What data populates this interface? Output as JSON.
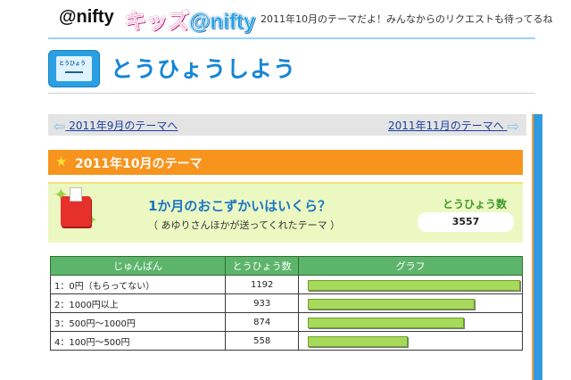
{
  "header": {
    "logo_main": "@nifty",
    "logo_kids_prefix": "キッズ",
    "logo_kids_suffix": "@nifty",
    "tagline": "2011年10月のテーマだよ！みんなからのリクエストも待ってるね"
  },
  "page": {
    "title": "とうひょうしよう",
    "icon_label": "とうひょう"
  },
  "nav": {
    "prev_label": "2011年9月のテーマへ",
    "next_label": "2011年11月のテーマへ"
  },
  "theme": {
    "label": "2011年10月のテーマ"
  },
  "question": {
    "title": "1か月のおこずかいはいくら？",
    "subtitle": "（ あゆりさんほかが送ってくれたテーマ ）",
    "votes_label": "とうひょう数",
    "votes_total": "3557"
  },
  "results": {
    "headers": [
      "じゅんばん",
      "とうひょう数",
      "グラフ"
    ],
    "rows": [
      {
        "label": "1：0円（もらってない）",
        "votes": "1192",
        "fraction": 1.0
      },
      {
        "label": "2：1000円以上",
        "votes": "933",
        "fraction": 0.783
      },
      {
        "label": "3：500円〜1000円",
        "votes": "874",
        "fraction": 0.733
      },
      {
        "label": "4：100円〜500円",
        "votes": "558",
        "fraction": 0.468
      }
    ]
  },
  "colors": {
    "accent_blue": "#1586d6",
    "theme_orange": "#f6941d",
    "header_green": "#5db56b",
    "bar_green": "#a7d95a"
  }
}
